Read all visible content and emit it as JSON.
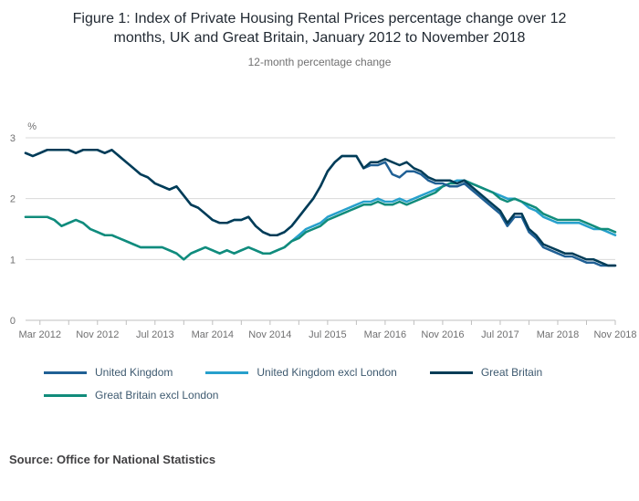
{
  "source_note": "Source: Office for National Statistics",
  "chart_data": {
    "type": "line",
    "title": "Figure 1: Index of Private Housing Rental Prices percentage change over 12 months, UK and Great Britain, January 2012 to November 2018",
    "subtitle": "12-month percentage change",
    "y_unit": "%",
    "ylim": [
      0,
      3
    ],
    "y_ticks": [
      0,
      1,
      2,
      3
    ],
    "n_points": 83,
    "x_start": "Jan 2012",
    "x_end": "Nov 2018",
    "grid": "horizontal",
    "legend_position": "bottom-left",
    "x_ticks": [
      {
        "index": 2,
        "label": "Mar 2012"
      },
      {
        "index": 10,
        "label": "Nov 2012"
      },
      {
        "index": 18,
        "label": "Jul 2013"
      },
      {
        "index": 26,
        "label": "Mar 2014"
      },
      {
        "index": 34,
        "label": "Nov 2014"
      },
      {
        "index": 42,
        "label": "Jul 2015"
      },
      {
        "index": 50,
        "label": "Mar 2016"
      },
      {
        "index": 58,
        "label": "Nov 2016"
      },
      {
        "index": 66,
        "label": "Jul 2017"
      },
      {
        "index": 74,
        "label": "Mar 2018"
      },
      {
        "index": 82,
        "label": "Nov 2018"
      }
    ],
    "series": [
      {
        "id": "united-kingdom",
        "name": "United Kingdom",
        "color": "#206095",
        "values": [
          2.75,
          2.7,
          2.75,
          2.8,
          2.8,
          2.8,
          2.8,
          2.75,
          2.8,
          2.8,
          2.8,
          2.75,
          2.8,
          2.7,
          2.6,
          2.5,
          2.4,
          2.35,
          2.25,
          2.2,
          2.15,
          2.2,
          2.05,
          1.9,
          1.85,
          1.75,
          1.65,
          1.6,
          1.6,
          1.65,
          1.65,
          1.7,
          1.55,
          1.45,
          1.4,
          1.4,
          1.45,
          1.55,
          1.7,
          1.85,
          2.0,
          2.2,
          2.45,
          2.6,
          2.7,
          2.7,
          2.7,
          2.5,
          2.55,
          2.55,
          2.6,
          2.4,
          2.35,
          2.45,
          2.45,
          2.4,
          2.3,
          2.25,
          2.25,
          2.2,
          2.2,
          2.25,
          2.15,
          2.05,
          1.95,
          1.85,
          1.75,
          1.55,
          1.7,
          1.7,
          1.45,
          1.35,
          1.2,
          1.15,
          1.1,
          1.05,
          1.05,
          1.0,
          0.95,
          0.95,
          0.9,
          0.9,
          0.9
        ]
      },
      {
        "id": "united-kingdom-excl-london",
        "name": "United Kingdom excl London",
        "color": "#27a0cc",
        "values": [
          1.7,
          1.7,
          1.7,
          1.7,
          1.65,
          1.55,
          1.6,
          1.65,
          1.6,
          1.5,
          1.45,
          1.4,
          1.4,
          1.35,
          1.3,
          1.25,
          1.2,
          1.2,
          1.2,
          1.2,
          1.15,
          1.1,
          1.0,
          1.1,
          1.15,
          1.2,
          1.15,
          1.1,
          1.15,
          1.1,
          1.15,
          1.2,
          1.15,
          1.1,
          1.1,
          1.15,
          1.2,
          1.3,
          1.4,
          1.5,
          1.55,
          1.6,
          1.7,
          1.75,
          1.8,
          1.85,
          1.9,
          1.95,
          1.95,
          2.0,
          1.95,
          1.95,
          2.0,
          1.95,
          2.0,
          2.05,
          2.1,
          2.15,
          2.2,
          2.25,
          2.3,
          2.3,
          2.25,
          2.2,
          2.15,
          2.1,
          2.05,
          2.0,
          2.0,
          1.95,
          1.85,
          1.8,
          1.7,
          1.65,
          1.6,
          1.6,
          1.6,
          1.6,
          1.55,
          1.5,
          1.5,
          1.45,
          1.4
        ]
      },
      {
        "id": "great-britain",
        "name": "Great Britain",
        "color": "#003c57",
        "values": [
          2.75,
          2.7,
          2.75,
          2.8,
          2.8,
          2.8,
          2.8,
          2.75,
          2.8,
          2.8,
          2.8,
          2.75,
          2.8,
          2.7,
          2.6,
          2.5,
          2.4,
          2.35,
          2.25,
          2.2,
          2.15,
          2.2,
          2.05,
          1.9,
          1.85,
          1.75,
          1.65,
          1.6,
          1.6,
          1.65,
          1.65,
          1.7,
          1.55,
          1.45,
          1.4,
          1.4,
          1.45,
          1.55,
          1.7,
          1.85,
          2.0,
          2.2,
          2.45,
          2.6,
          2.7,
          2.7,
          2.7,
          2.5,
          2.6,
          2.6,
          2.65,
          2.6,
          2.55,
          2.6,
          2.5,
          2.45,
          2.35,
          2.3,
          2.3,
          2.3,
          2.25,
          2.3,
          2.2,
          2.1,
          2.0,
          1.9,
          1.8,
          1.6,
          1.75,
          1.75,
          1.5,
          1.4,
          1.25,
          1.2,
          1.15,
          1.1,
          1.1,
          1.05,
          1.0,
          1.0,
          0.95,
          0.9,
          0.9
        ]
      },
      {
        "id": "great-britain-excl-london",
        "name": "Great Britain excl London",
        "color": "#118c7b",
        "values": [
          1.7,
          1.7,
          1.7,
          1.7,
          1.65,
          1.55,
          1.6,
          1.65,
          1.6,
          1.5,
          1.45,
          1.4,
          1.4,
          1.35,
          1.3,
          1.25,
          1.2,
          1.2,
          1.2,
          1.2,
          1.15,
          1.1,
          1.0,
          1.1,
          1.15,
          1.2,
          1.15,
          1.1,
          1.15,
          1.1,
          1.15,
          1.2,
          1.15,
          1.1,
          1.1,
          1.15,
          1.2,
          1.3,
          1.35,
          1.45,
          1.5,
          1.55,
          1.65,
          1.7,
          1.75,
          1.8,
          1.85,
          1.9,
          1.9,
          1.95,
          1.9,
          1.9,
          1.95,
          1.9,
          1.95,
          2.0,
          2.05,
          2.1,
          2.2,
          2.25,
          2.25,
          2.3,
          2.25,
          2.2,
          2.15,
          2.1,
          2.0,
          1.95,
          2.0,
          1.95,
          1.9,
          1.85,
          1.75,
          1.7,
          1.65,
          1.65,
          1.65,
          1.65,
          1.6,
          1.55,
          1.5,
          1.5,
          1.45
        ]
      }
    ]
  }
}
